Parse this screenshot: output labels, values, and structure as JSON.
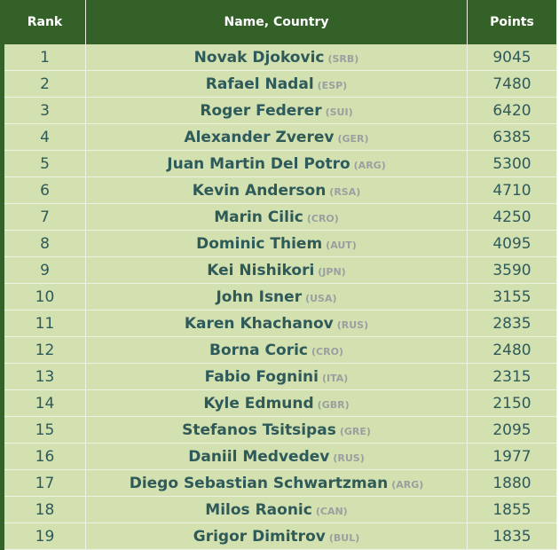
{
  "header": {
    "rank": "Rank",
    "name": "Name, Country",
    "points": "Points"
  },
  "rows": [
    {
      "rank": "1",
      "name": "Novak Djokovic",
      "country": "(SRB)",
      "points": "9045"
    },
    {
      "rank": "2",
      "name": "Rafael Nadal",
      "country": "(ESP)",
      "points": "7480"
    },
    {
      "rank": "3",
      "name": "Roger Federer",
      "country": "(SUI)",
      "points": "6420"
    },
    {
      "rank": "4",
      "name": "Alexander Zverev",
      "country": "(GER)",
      "points": "6385"
    },
    {
      "rank": "5",
      "name": "Juan Martin Del Potro",
      "country": "(ARG)",
      "points": "5300"
    },
    {
      "rank": "6",
      "name": "Kevin Anderson",
      "country": "(RSA)",
      "points": "4710"
    },
    {
      "rank": "7",
      "name": "Marin Cilic",
      "country": "(CRO)",
      "points": "4250"
    },
    {
      "rank": "8",
      "name": "Dominic Thiem",
      "country": "(AUT)",
      "points": "4095"
    },
    {
      "rank": "9",
      "name": "Kei Nishikori",
      "country": "(JPN)",
      "points": "3590"
    },
    {
      "rank": "10",
      "name": "John Isner",
      "country": "(USA)",
      "points": "3155"
    },
    {
      "rank": "11",
      "name": "Karen Khachanov",
      "country": "(RUS)",
      "points": "2835"
    },
    {
      "rank": "12",
      "name": "Borna Coric",
      "country": "(CRO)",
      "points": "2480"
    },
    {
      "rank": "13",
      "name": "Fabio Fognini",
      "country": "(ITA)",
      "points": "2315"
    },
    {
      "rank": "14",
      "name": "Kyle Edmund",
      "country": "(GBR)",
      "points": "2150"
    },
    {
      "rank": "15",
      "name": "Stefanos Tsitsipas",
      "country": "(GRE)",
      "points": "2095"
    },
    {
      "rank": "16",
      "name": "Daniil Medvedev",
      "country": "(RUS)",
      "points": "1977"
    },
    {
      "rank": "17",
      "name": "Diego Sebastian Schwartzman",
      "country": "(ARG)",
      "points": "1880"
    },
    {
      "rank": "18",
      "name": "Milos Raonic",
      "country": "(CAN)",
      "points": "1855"
    },
    {
      "rank": "19",
      "name": "Grigor Dimitrov",
      "country": "(BUL)",
      "points": "1835"
    }
  ]
}
